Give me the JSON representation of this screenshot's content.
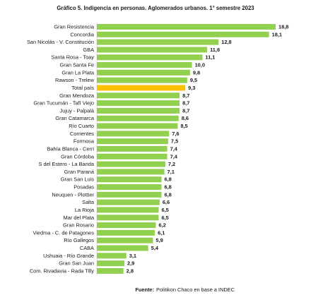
{
  "chart_data": {
    "type": "hbar",
    "title": "Gráfico 5. Indigencia en personas. Aglomerados urbanos. 1° semestre 2023",
    "categories": [
      "Gran Resistencia",
      "Concordia",
      "San Nicolás - V. Constitución",
      "GBA",
      "Santa Rosa - Toay",
      "Gran Santa Fe",
      "Gran La Plata",
      "Rawson - Trelew",
      "Total país",
      "Gran Mendoza",
      "Gran Tucumán - Tafí Viejo",
      "Jujuy - Palpalá",
      "Gran Catamarca",
      "Río Cuarto",
      "Corrientes",
      "Formosa",
      "Bahía Blanca - Cerri",
      "Gran Córdoba",
      "S del Estero - La Banda",
      "Gran Paraná",
      "Gran San Luis",
      "Posadas",
      "Neuquen - Plottier",
      "Salta",
      "La Rioja",
      "Mar del Plata",
      "Gran Rosario",
      "Viedma - C. de Patagones",
      "Río Gallegos",
      "CABA",
      "Ushuaia - Río Grande",
      "Gran San Juan",
      "Com. Rivadavia - Rada Tilly"
    ],
    "values": [
      18.8,
      18.1,
      12.8,
      11.6,
      11.1,
      10,
      9.8,
      9.5,
      9.3,
      8.7,
      8.7,
      8.7,
      8.6,
      8.5,
      7.6,
      7.5,
      7.4,
      7.4,
      7.2,
      7.1,
      6.8,
      6.8,
      6.8,
      6.6,
      6.5,
      6.5,
      6.2,
      6.1,
      5.9,
      5.4,
      3.1,
      2.9,
      2.8
    ],
    "value_labels": [
      "18,8",
      "18,1",
      "12,8",
      "11,6",
      "11,1",
      "10,0",
      "9,8",
      "9,5",
      "9,3",
      "8,7",
      "8,7",
      "8,7",
      "8,6",
      "8,5",
      "7,6",
      "7,5",
      "7,4",
      "7,4",
      "7,2",
      "7,1",
      "6,8",
      "6,8",
      "6,8",
      "6,6",
      "6,5",
      "6,5",
      "6,2",
      "6,1",
      "5,9",
      "5,4",
      "3,1",
      "2,9",
      "2,8"
    ],
    "colors": [
      "#92d050",
      "#92d050",
      "#92d050",
      "#92d050",
      "#92d050",
      "#92d050",
      "#92d050",
      "#92d050",
      "#ffc000",
      "#92d050",
      "#92d050",
      "#92d050",
      "#92d050",
      "#92d050",
      "#92d050",
      "#92d050",
      "#92d050",
      "#92d050",
      "#92d050",
      "#92d050",
      "#92d050",
      "#92d050",
      "#92d050",
      "#92d050",
      "#92d050",
      "#92d050",
      "#92d050",
      "#92d050",
      "#92d050",
      "#92d050",
      "#92d050",
      "#92d050",
      "#92d050"
    ],
    "source_label": "Fuente:",
    "source": "Politikon Chaco en base a INDEC"
  }
}
